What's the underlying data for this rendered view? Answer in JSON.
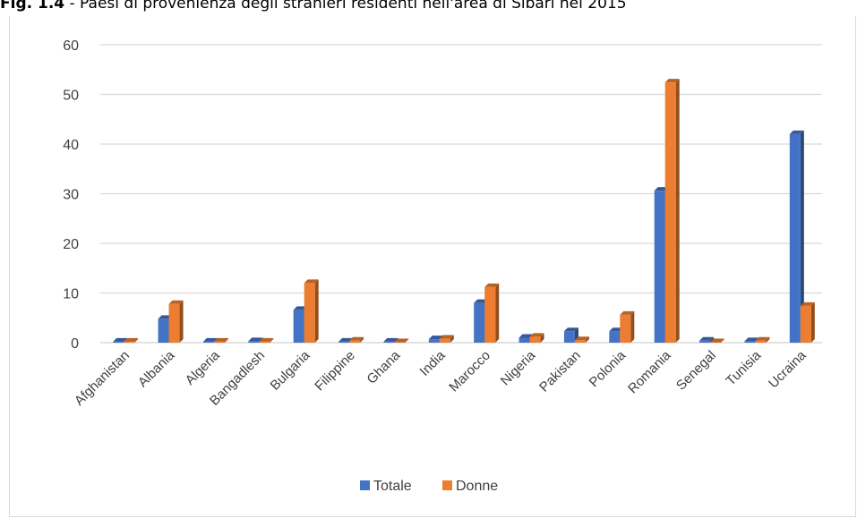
{
  "caption": {
    "label": "Fig. 1.4",
    "text": " - Paesi di provenienza degli stranieri residenti nell'area di Sibari nel 2015"
  },
  "chart_data": {
    "type": "bar",
    "title": "",
    "xlabel": "",
    "ylabel": "",
    "ylim": [
      0,
      60
    ],
    "yticks": [
      0,
      10,
      20,
      30,
      40,
      50,
      60
    ],
    "grid": true,
    "legend_position": "bottom",
    "categories": [
      "Afghanistan",
      "Albania",
      "Algeria",
      "Bangadlesh",
      "Bulgaria",
      "Filippine",
      "Ghana",
      "India",
      "Marocco",
      "Nigeria",
      "Pakistan",
      "Polonia",
      "Romania",
      "Senegal",
      "Tunisia",
      "Ucraina"
    ],
    "series": [
      {
        "name": "Totale",
        "color": "#4472c4",
        "values": [
          0.2,
          4.8,
          0.2,
          0.3,
          6.6,
          0.2,
          0.2,
          0.7,
          8.0,
          1.0,
          2.3,
          2.3,
          30.6,
          0.4,
          0.3,
          42.0
        ]
      },
      {
        "name": "Donne",
        "color": "#ed7d31",
        "values": [
          0.2,
          7.8,
          0.2,
          0.2,
          12.0,
          0.4,
          0.1,
          0.8,
          11.2,
          1.2,
          0.5,
          5.6,
          52.4,
          0.1,
          0.4,
          7.4
        ]
      }
    ]
  }
}
